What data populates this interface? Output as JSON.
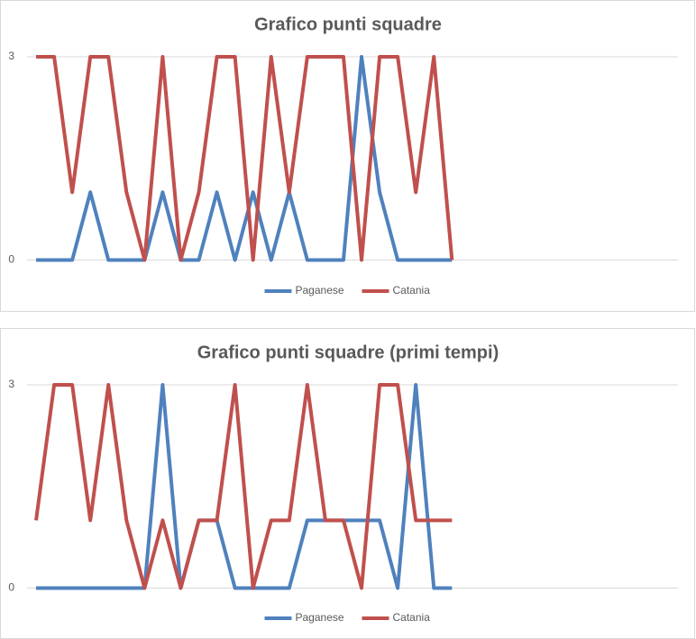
{
  "chart_data": [
    {
      "type": "line",
      "title": "Grafico punti squadre",
      "categories": [
        null,
        null,
        null,
        null,
        null,
        null,
        null,
        null,
        null,
        null,
        null,
        null,
        null,
        null,
        null,
        null,
        null,
        null,
        null,
        null,
        null,
        null,
        null,
        null,
        null,
        null,
        null,
        null,
        null,
        null,
        null,
        null,
        null,
        null,
        null,
        null
      ],
      "series": [
        {
          "name": "Paganese",
          "color": "#4f81bd",
          "values": [
            0,
            0,
            0,
            1,
            0,
            0,
            0,
            1,
            0,
            0,
            1,
            0,
            1,
            0,
            1,
            0,
            0,
            0,
            3,
            1,
            0,
            0,
            0,
            0,
            null,
            null,
            null,
            null,
            null,
            null,
            null,
            null,
            null,
            null,
            null,
            null
          ]
        },
        {
          "name": "Catania",
          "color": "#c0504d",
          "values": [
            3,
            3,
            1,
            3,
            3,
            1,
            0,
            3,
            0,
            1,
            3,
            3,
            0,
            3,
            1,
            3,
            3,
            3,
            0,
            3,
            3,
            1,
            3,
            0,
            null,
            null,
            null,
            null,
            null,
            null,
            null,
            null,
            null,
            null,
            null,
            null
          ]
        }
      ],
      "ylim": [
        0,
        3
      ],
      "yticks": [
        0,
        3
      ],
      "grid": true,
      "legend": "bottom"
    },
    {
      "type": "line",
      "title": "Grafico punti squadre (primi tempi)",
      "categories": [
        null,
        null,
        null,
        null,
        null,
        null,
        null,
        null,
        null,
        null,
        null,
        null,
        null,
        null,
        null,
        null,
        null,
        null,
        null,
        null,
        null,
        null,
        null,
        null,
        null,
        null,
        null,
        null,
        null,
        null,
        null,
        null,
        null,
        null,
        null,
        null
      ],
      "series": [
        {
          "name": "Paganese",
          "color": "#4f81bd",
          "values": [
            0,
            0,
            0,
            0,
            0,
            0,
            0,
            3,
            0,
            1,
            1,
            0,
            0,
            0,
            0,
            1,
            1,
            1,
            1,
            1,
            0,
            3,
            0,
            0,
            null,
            null,
            null,
            null,
            null,
            null,
            null,
            null,
            null,
            null,
            null,
            null
          ]
        },
        {
          "name": "Catania",
          "color": "#c0504d",
          "values": [
            1,
            3,
            3,
            1,
            3,
            1,
            0,
            1,
            0,
            1,
            1,
            3,
            0,
            1,
            1,
            3,
            1,
            1,
            0,
            3,
            3,
            1,
            1,
            1,
            null,
            null,
            null,
            null,
            null,
            null,
            null,
            null,
            null,
            null,
            null,
            null
          ]
        }
      ],
      "ylim": [
        0,
        3
      ],
      "yticks": [
        0,
        3
      ],
      "grid": true,
      "legend": "bottom"
    }
  ]
}
